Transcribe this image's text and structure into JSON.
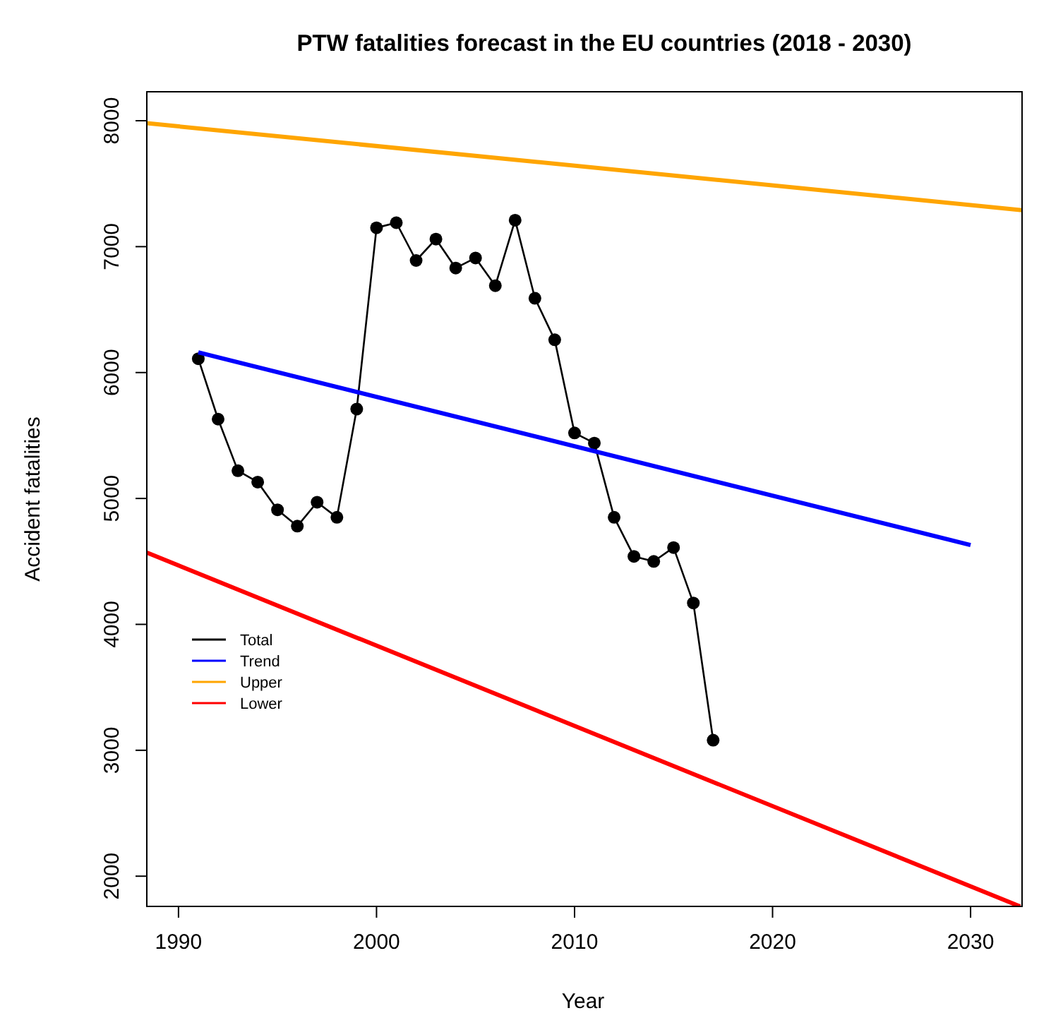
{
  "chart_data": {
    "type": "line",
    "title": "PTW fatalities forecast in the EU countries (2018 - 2030)",
    "xlabel": "Year",
    "ylabel": "Accident fatalities",
    "xlim": [
      1988.4,
      2032.6
    ],
    "xticks": [
      1990,
      2000,
      2010,
      2020,
      2030
    ],
    "ylim": [
      1760,
      8230
    ],
    "yticks": [
      2000,
      3000,
      4000,
      5000,
      6000,
      7000,
      8000
    ],
    "grid": false,
    "legend": "left",
    "series": [
      {
        "name": "Total",
        "color": "#000000",
        "marker": "circle",
        "x": [
          1991,
          1992,
          1993,
          1994,
          1995,
          1996,
          1997,
          1998,
          1999,
          2000,
          2001,
          2002,
          2003,
          2004,
          2005,
          2006,
          2007,
          2008,
          2009,
          2010,
          2011,
          2012,
          2013,
          2014,
          2015,
          2016,
          2017
        ],
        "values": [
          6110,
          5630,
          5220,
          5130,
          4910,
          4780,
          4970,
          4850,
          5710,
          7150,
          7190,
          6890,
          7060,
          6830,
          6910,
          6690,
          7210,
          6590,
          6260,
          5520,
          5440,
          4850,
          4540,
          4500,
          4610,
          4170,
          3080
        ]
      },
      {
        "name": "Trend",
        "color": "#0000ff",
        "marker": "none",
        "x": [
          1991,
          2030
        ],
        "values": [
          6160,
          4630
        ]
      },
      {
        "name": "Upper",
        "color": "#ffa500",
        "marker": "none",
        "x": [
          1988.4,
          2032.6
        ],
        "values": [
          7980,
          7290
        ]
      },
      {
        "name": "Lower",
        "color": "#ff0000",
        "marker": "none",
        "x": [
          1988.4,
          2032.5
        ],
        "values": [
          4570,
          1760
        ]
      }
    ]
  }
}
